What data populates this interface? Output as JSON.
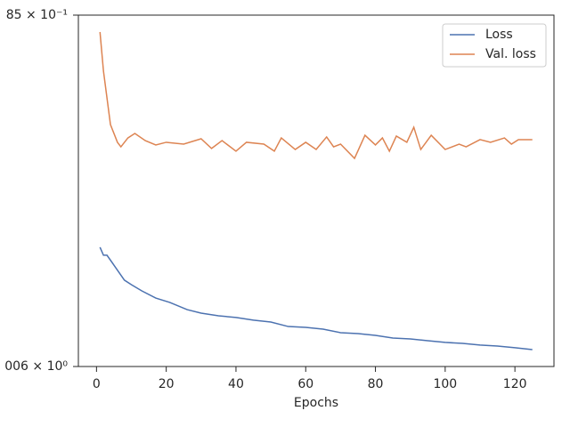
{
  "chart_data": {
    "type": "line",
    "xlabel": "Epochs",
    "xlim": [
      -5.2,
      131.2
    ],
    "xticks": [
      0,
      20,
      40,
      60,
      80,
      100,
      120
    ],
    "ylim": [
      1.006,
      0.985
    ],
    "yticks": [
      {
        "value": 1.006,
        "label": "006 × 10⁰"
      },
      {
        "value": 0.985,
        "label": "85 × 10⁻¹"
      }
    ],
    "legend": "upper right",
    "series": [
      {
        "name": "Loss",
        "color": "#4c72b0",
        "x": [
          1,
          2,
          3,
          5,
          8,
          10,
          13,
          17,
          21,
          26,
          30,
          35,
          40,
          45,
          50,
          55,
          60,
          65,
          70,
          75,
          80,
          85,
          90,
          95,
          100,
          105,
          110,
          115,
          120,
          125
        ],
        "values": [
          0.99887,
          0.99935,
          0.99935,
          0.99994,
          1.00084,
          1.00111,
          1.00148,
          1.00191,
          1.00217,
          1.0026,
          1.00281,
          1.00297,
          1.00307,
          1.00323,
          1.00334,
          1.00361,
          1.00366,
          1.00377,
          1.00398,
          1.00403,
          1.00414,
          1.0043,
          1.00435,
          1.00446,
          1.00456,
          1.00462,
          1.00472,
          1.00478,
          1.00488,
          1.00499
        ]
      },
      {
        "name": "Val. loss",
        "color": "#dd8452",
        "x": [
          1,
          2,
          4,
          6,
          7,
          9,
          11,
          14,
          17,
          20,
          25,
          30,
          33,
          36,
          40,
          43,
          48,
          51,
          53,
          57,
          60,
          63,
          66,
          68,
          70,
          74,
          77,
          80,
          82,
          84,
          86,
          89,
          91,
          93,
          96,
          100,
          104,
          106,
          110,
          113,
          117,
          119,
          121,
          124,
          125
        ],
        "values": [
          0.98601,
          0.98835,
          0.99154,
          0.9926,
          0.99287,
          0.99234,
          0.99207,
          0.9925,
          0.99276,
          0.9926,
          0.99271,
          0.99239,
          0.99297,
          0.9925,
          0.99313,
          0.9926,
          0.99271,
          0.99313,
          0.99234,
          0.99303,
          0.9926,
          0.99303,
          0.99228,
          0.99287,
          0.99271,
          0.99356,
          0.99218,
          0.99276,
          0.99234,
          0.99313,
          0.99223,
          0.9926,
          0.9917,
          0.99303,
          0.99218,
          0.99303,
          0.99271,
          0.99287,
          0.99244,
          0.9926,
          0.99234,
          0.99271,
          0.99244,
          0.99244,
          0.99244
        ]
      }
    ]
  }
}
